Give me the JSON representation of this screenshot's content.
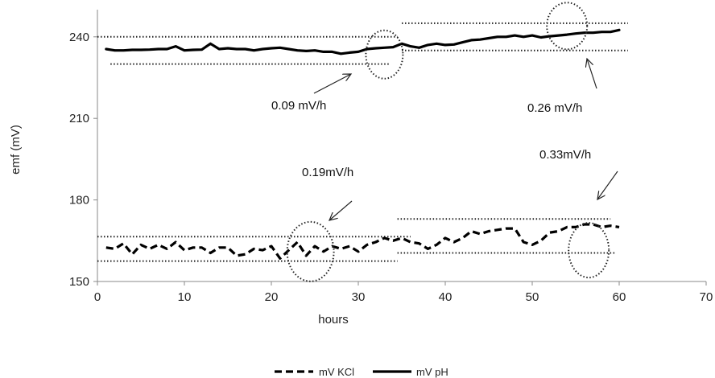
{
  "chart_data": {
    "type": "line",
    "xlabel": "hours",
    "ylabel": "emf (mV)",
    "xlim": [
      0,
      70
    ],
    "ylim": [
      150,
      250
    ],
    "x_ticks": [
      0,
      10,
      20,
      30,
      40,
      50,
      60,
      70
    ],
    "y_ticks": [
      150,
      180,
      210,
      240
    ],
    "grid": false,
    "legend_position": "bottom-center",
    "series": [
      {
        "name": "mV KCl",
        "style": "dashed",
        "color": "#000000",
        "x": [
          1,
          2,
          3,
          4,
          5,
          6,
          7,
          8,
          9,
          10,
          11,
          12,
          13,
          14,
          15,
          16,
          17,
          18,
          19,
          20,
          21,
          22,
          23,
          24,
          25,
          26,
          27,
          28,
          29,
          30,
          31,
          32,
          33,
          34,
          35,
          36,
          37,
          38,
          39,
          40,
          41,
          42,
          43,
          44,
          45,
          46,
          47,
          48,
          49,
          50,
          51,
          52,
          53,
          54,
          55,
          56,
          57,
          58,
          59,
          60
        ],
        "values": [
          162.5,
          162,
          164,
          160,
          163.5,
          162,
          163.5,
          162,
          164.5,
          161.5,
          162.5,
          162.5,
          160.5,
          162.5,
          162.5,
          159.5,
          160,
          162,
          161.5,
          163,
          158.5,
          161.5,
          164.5,
          159.5,
          163,
          161,
          163,
          162,
          163,
          161,
          163.5,
          164.5,
          166,
          165,
          166,
          164.5,
          164,
          162,
          163.5,
          166,
          164.5,
          166,
          168.5,
          167.5,
          168.5,
          169,
          169.5,
          169.5,
          164.5,
          163.5,
          165,
          168,
          168.5,
          170,
          170,
          171,
          171,
          170,
          170.5,
          170
        ]
      },
      {
        "name": "mV pH",
        "style": "solid",
        "color": "#000000",
        "x": [
          1,
          2,
          3,
          4,
          5,
          6,
          7,
          8,
          9,
          10,
          11,
          12,
          13,
          14,
          15,
          16,
          17,
          18,
          19,
          20,
          21,
          22,
          23,
          24,
          25,
          26,
          27,
          28,
          29,
          30,
          31,
          32,
          33,
          34,
          35,
          36,
          37,
          38,
          39,
          40,
          41,
          42,
          43,
          44,
          45,
          46,
          47,
          48,
          49,
          50,
          51,
          52,
          53,
          54,
          55,
          56,
          57,
          58,
          59,
          60
        ],
        "values": [
          235.5,
          235,
          235,
          235.2,
          235.2,
          235.3,
          235.5,
          235.5,
          236.5,
          235,
          235.2,
          235.3,
          237.5,
          235.5,
          235.8,
          235.5,
          235.5,
          235,
          235.5,
          235.8,
          236,
          235.5,
          235,
          234.8,
          235,
          234.5,
          234.5,
          233.8,
          234.2,
          234.5,
          235.5,
          235.8,
          236,
          236.2,
          237.5,
          236.5,
          236,
          237,
          237.5,
          237,
          237.2,
          238,
          238.8,
          239,
          239.5,
          240,
          240,
          240.5,
          240,
          240.5,
          239.8,
          240.2,
          240.5,
          240.8,
          241.2,
          241.5,
          241.5,
          241.8,
          241.8,
          242.5
        ]
      }
    ],
    "annotations": [
      {
        "text": "0.09 mV/h"
      },
      {
        "text": "0.26 mV/h"
      },
      {
        "text": "0.19mV/h"
      },
      {
        "text": "0.33mV/h"
      }
    ]
  }
}
